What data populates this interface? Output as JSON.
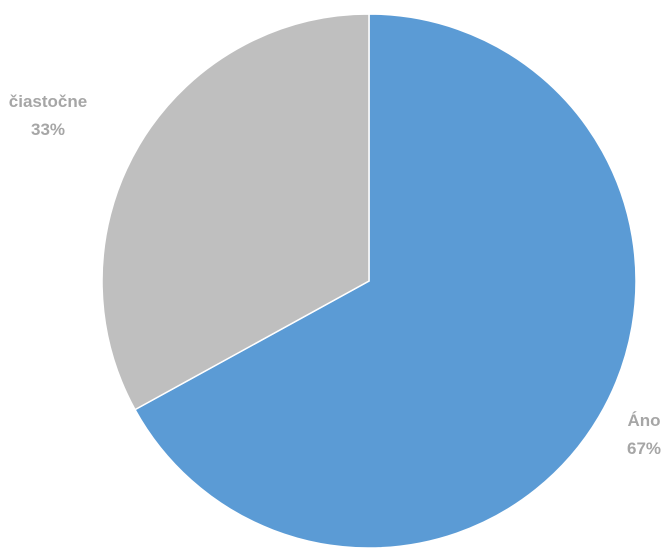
{
  "chart_data": {
    "type": "pie",
    "title": "",
    "start_angle_deg": 0,
    "direction": "clockwise",
    "slices": [
      {
        "label": "Áno",
        "percent_label": "67%",
        "value": 67,
        "color": "#5B9BD5"
      },
      {
        "label": "čiastočne",
        "percent_label": "33%",
        "value": 33,
        "color": "#BFBFBF"
      }
    ],
    "label_color": "#A6A6A6",
    "legend": "none"
  }
}
